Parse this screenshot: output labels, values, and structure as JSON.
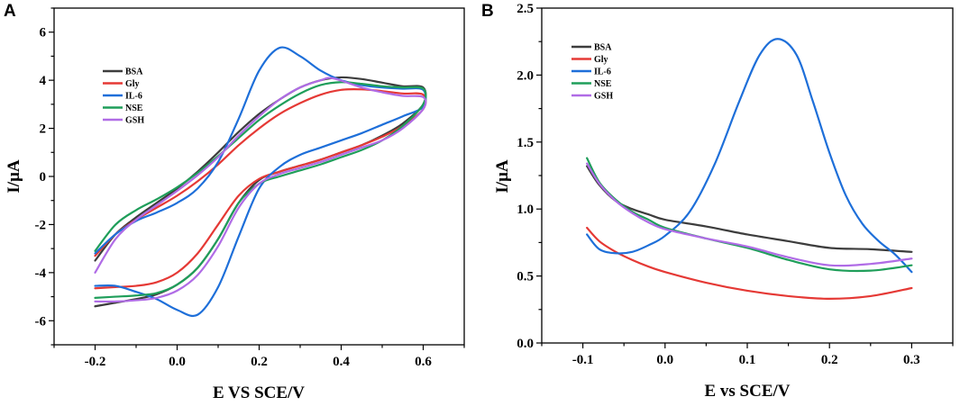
{
  "chart_data": [
    {
      "panel_label": "A",
      "type": "line",
      "title": "",
      "xlabel": "E VS SCE/V",
      "ylabel": "I/μA",
      "xlim": [
        -0.3,
        0.7
      ],
      "ylim": [
        -7,
        7
      ],
      "xticks": [
        -0.2,
        0.0,
        0.2,
        0.4,
        0.6
      ],
      "xtick_labels": [
        "-0.2",
        "0.0",
        "0.2",
        "0.4",
        "0.6"
      ],
      "yticks": [
        -6,
        -4,
        -2,
        0,
        2,
        4,
        6
      ],
      "ytick_labels": [
        "-6",
        "-4",
        "-2",
        "0",
        "2",
        "4",
        "6"
      ],
      "legend_position": "upper-left",
      "series": [
        {
          "name": "BSA",
          "color": "#3d3d3d",
          "points": [
            [
              -0.2,
              -3.5
            ],
            [
              -0.15,
              -2.4
            ],
            [
              -0.1,
              -1.7
            ],
            [
              -0.05,
              -1.1
            ],
            [
              0.0,
              -0.5
            ],
            [
              0.05,
              0.2
            ],
            [
              0.1,
              1.0
            ],
            [
              0.15,
              1.85
            ],
            [
              0.2,
              2.6
            ],
            [
              0.25,
              3.2
            ],
            [
              0.3,
              3.7
            ],
            [
              0.35,
              4.0
            ],
            [
              0.4,
              4.12
            ],
            [
              0.45,
              4.05
            ],
            [
              0.5,
              3.9
            ],
            [
              0.55,
              3.75
            ],
            [
              0.6,
              3.7
            ],
            [
              0.6,
              3.0
            ],
            [
              0.55,
              2.2
            ],
            [
              0.5,
              1.7
            ],
            [
              0.45,
              1.3
            ],
            [
              0.4,
              1.0
            ],
            [
              0.35,
              0.7
            ],
            [
              0.3,
              0.45
            ],
            [
              0.25,
              0.2
            ],
            [
              0.2,
              -0.15
            ],
            [
              0.15,
              -1.1
            ],
            [
              0.1,
              -2.6
            ],
            [
              0.05,
              -3.8
            ],
            [
              0.0,
              -4.5
            ],
            [
              -0.05,
              -4.9
            ],
            [
              -0.1,
              -5.1
            ],
            [
              -0.15,
              -5.25
            ],
            [
              -0.2,
              -5.4
            ]
          ]
        },
        {
          "name": "Gly",
          "color": "#e53935",
          "points": [
            [
              -0.2,
              -3.3
            ],
            [
              -0.15,
              -2.4
            ],
            [
              -0.1,
              -1.8
            ],
            [
              -0.05,
              -1.3
            ],
            [
              0.0,
              -0.8
            ],
            [
              0.05,
              -0.2
            ],
            [
              0.1,
              0.5
            ],
            [
              0.15,
              1.3
            ],
            [
              0.2,
              2.0
            ],
            [
              0.25,
              2.6
            ],
            [
              0.3,
              3.05
            ],
            [
              0.35,
              3.4
            ],
            [
              0.4,
              3.6
            ],
            [
              0.45,
              3.62
            ],
            [
              0.5,
              3.55
            ],
            [
              0.55,
              3.45
            ],
            [
              0.6,
              3.4
            ],
            [
              0.6,
              2.8
            ],
            [
              0.55,
              2.1
            ],
            [
              0.5,
              1.65
            ],
            [
              0.45,
              1.3
            ],
            [
              0.4,
              1.0
            ],
            [
              0.35,
              0.7
            ],
            [
              0.3,
              0.45
            ],
            [
              0.25,
              0.2
            ],
            [
              0.2,
              -0.1
            ],
            [
              0.15,
              -0.8
            ],
            [
              0.1,
              -2.0
            ],
            [
              0.05,
              -3.2
            ],
            [
              0.0,
              -4.0
            ],
            [
              -0.05,
              -4.4
            ],
            [
              -0.1,
              -4.55
            ],
            [
              -0.15,
              -4.6
            ],
            [
              -0.2,
              -4.65
            ]
          ]
        },
        {
          "name": "IL-6",
          "color": "#1e6fd9",
          "points": [
            [
              -0.2,
              -3.2
            ],
            [
              -0.15,
              -2.4
            ],
            [
              -0.1,
              -1.85
            ],
            [
              -0.05,
              -1.5
            ],
            [
              0.0,
              -1.1
            ],
            [
              0.05,
              -0.5
            ],
            [
              0.1,
              0.6
            ],
            [
              0.15,
              2.4
            ],
            [
              0.2,
              4.4
            ],
            [
              0.25,
              5.35
            ],
            [
              0.3,
              5.0
            ],
            [
              0.35,
              4.4
            ],
            [
              0.4,
              4.0
            ],
            [
              0.45,
              3.8
            ],
            [
              0.5,
              3.7
            ],
            [
              0.55,
              3.65
            ],
            [
              0.6,
              3.6
            ],
            [
              0.6,
              2.9
            ],
            [
              0.55,
              2.5
            ],
            [
              0.5,
              2.15
            ],
            [
              0.45,
              1.8
            ],
            [
              0.4,
              1.5
            ],
            [
              0.35,
              1.2
            ],
            [
              0.3,
              0.9
            ],
            [
              0.25,
              0.4
            ],
            [
              0.2,
              -0.5
            ],
            [
              0.15,
              -2.5
            ],
            [
              0.1,
              -4.6
            ],
            [
              0.05,
              -5.75
            ],
            [
              0.0,
              -5.55
            ],
            [
              -0.05,
              -5.1
            ],
            [
              -0.1,
              -4.8
            ],
            [
              -0.15,
              -4.55
            ],
            [
              -0.2,
              -4.55
            ]
          ]
        },
        {
          "name": "NSE",
          "color": "#1f9e5a",
          "points": [
            [
              -0.2,
              -3.1
            ],
            [
              -0.15,
              -2.0
            ],
            [
              -0.1,
              -1.4
            ],
            [
              -0.05,
              -0.95
            ],
            [
              0.0,
              -0.45
            ],
            [
              0.05,
              0.15
            ],
            [
              0.1,
              0.85
            ],
            [
              0.15,
              1.6
            ],
            [
              0.2,
              2.35
            ],
            [
              0.25,
              2.95
            ],
            [
              0.3,
              3.45
            ],
            [
              0.35,
              3.8
            ],
            [
              0.4,
              3.92
            ],
            [
              0.45,
              3.85
            ],
            [
              0.5,
              3.75
            ],
            [
              0.55,
              3.7
            ],
            [
              0.6,
              3.65
            ],
            [
              0.6,
              3.0
            ],
            [
              0.55,
              2.1
            ],
            [
              0.5,
              1.5
            ],
            [
              0.45,
              1.1
            ],
            [
              0.4,
              0.8
            ],
            [
              0.35,
              0.5
            ],
            [
              0.3,
              0.25
            ],
            [
              0.25,
              0.0
            ],
            [
              0.2,
              -0.3
            ],
            [
              0.15,
              -1.1
            ],
            [
              0.1,
              -2.6
            ],
            [
              0.05,
              -3.8
            ],
            [
              0.0,
              -4.5
            ],
            [
              -0.05,
              -4.85
            ],
            [
              -0.1,
              -4.95
            ],
            [
              -0.15,
              -5.0
            ],
            [
              -0.2,
              -5.05
            ]
          ]
        },
        {
          "name": "GSH",
          "color": "#b06ce6",
          "points": [
            [
              -0.2,
              -4.0
            ],
            [
              -0.15,
              -2.6
            ],
            [
              -0.1,
              -1.8
            ],
            [
              -0.05,
              -1.2
            ],
            [
              0.0,
              -0.6
            ],
            [
              0.05,
              0.05
            ],
            [
              0.1,
              0.8
            ],
            [
              0.15,
              1.7
            ],
            [
              0.2,
              2.5
            ],
            [
              0.25,
              3.2
            ],
            [
              0.3,
              3.7
            ],
            [
              0.35,
              4.0
            ],
            [
              0.38,
              4.08
            ],
            [
              0.45,
              3.7
            ],
            [
              0.5,
              3.5
            ],
            [
              0.55,
              3.35
            ],
            [
              0.6,
              3.3
            ],
            [
              0.6,
              2.8
            ],
            [
              0.55,
              2.0
            ],
            [
              0.5,
              1.5
            ],
            [
              0.45,
              1.2
            ],
            [
              0.4,
              0.9
            ],
            [
              0.35,
              0.6
            ],
            [
              0.3,
              0.35
            ],
            [
              0.25,
              0.1
            ],
            [
              0.2,
              -0.3
            ],
            [
              0.15,
              -1.3
            ],
            [
              0.1,
              -2.9
            ],
            [
              0.05,
              -4.1
            ],
            [
              0.0,
              -4.75
            ],
            [
              -0.05,
              -5.05
            ],
            [
              -0.1,
              -5.15
            ],
            [
              -0.15,
              -5.2
            ],
            [
              -0.2,
              -5.2
            ]
          ]
        }
      ]
    },
    {
      "panel_label": "B",
      "type": "line",
      "title": "",
      "xlabel": "E vs SCE/V",
      "ylabel": "I/μA",
      "xlim": [
        -0.15,
        0.35
      ],
      "ylim": [
        0.0,
        2.5
      ],
      "xticks": [
        -0.1,
        0.0,
        0.1,
        0.2,
        0.3
      ],
      "xtick_labels": [
        "-0.1",
        "0.0",
        "0.1",
        "0.2",
        "0.3"
      ],
      "yticks": [
        0.0,
        0.5,
        1.0,
        1.5,
        2.0,
        2.5
      ],
      "ytick_labels": [
        "0.0",
        "0.5",
        "1.0",
        "1.5",
        "2.0",
        "2.5"
      ],
      "legend_position": "upper-left",
      "series": [
        {
          "name": "BSA",
          "color": "#3d3d3d",
          "points": [
            [
              -0.095,
              1.32
            ],
            [
              -0.08,
              1.18
            ],
            [
              -0.06,
              1.06
            ],
            [
              -0.04,
              1.0
            ],
            [
              -0.02,
              0.96
            ],
            [
              0.0,
              0.92
            ],
            [
              0.05,
              0.87
            ],
            [
              0.1,
              0.81
            ],
            [
              0.15,
              0.76
            ],
            [
              0.2,
              0.71
            ],
            [
              0.25,
              0.7
            ],
            [
              0.3,
              0.68
            ]
          ]
        },
        {
          "name": "Gly",
          "color": "#e53935",
          "points": [
            [
              -0.095,
              0.86
            ],
            [
              -0.08,
              0.76
            ],
            [
              -0.06,
              0.68
            ],
            [
              -0.04,
              0.62
            ],
            [
              -0.02,
              0.57
            ],
            [
              0.0,
              0.53
            ],
            [
              0.05,
              0.45
            ],
            [
              0.1,
              0.39
            ],
            [
              0.15,
              0.35
            ],
            [
              0.2,
              0.33
            ],
            [
              0.25,
              0.35
            ],
            [
              0.3,
              0.41
            ]
          ]
        },
        {
          "name": "IL-6",
          "color": "#1e6fd9",
          "points": [
            [
              -0.095,
              0.81
            ],
            [
              -0.08,
              0.7
            ],
            [
              -0.06,
              0.67
            ],
            [
              -0.04,
              0.68
            ],
            [
              -0.02,
              0.73
            ],
            [
              0.0,
              0.8
            ],
            [
              0.03,
              0.98
            ],
            [
              0.06,
              1.33
            ],
            [
              0.09,
              1.8
            ],
            [
              0.115,
              2.15
            ],
            [
              0.137,
              2.27
            ],
            [
              0.16,
              2.15
            ],
            [
              0.18,
              1.8
            ],
            [
              0.2,
              1.42
            ],
            [
              0.22,
              1.1
            ],
            [
              0.24,
              0.89
            ],
            [
              0.26,
              0.76
            ],
            [
              0.28,
              0.66
            ],
            [
              0.3,
              0.53
            ]
          ]
        },
        {
          "name": "NSE",
          "color": "#1f9e5a",
          "points": [
            [
              -0.095,
              1.38
            ],
            [
              -0.08,
              1.2
            ],
            [
              -0.06,
              1.07
            ],
            [
              -0.04,
              0.98
            ],
            [
              -0.02,
              0.92
            ],
            [
              0.0,
              0.86
            ],
            [
              0.05,
              0.78
            ],
            [
              0.1,
              0.71
            ],
            [
              0.15,
              0.62
            ],
            [
              0.2,
              0.55
            ],
            [
              0.25,
              0.54
            ],
            [
              0.3,
              0.58
            ]
          ]
        },
        {
          "name": "GSH",
          "color": "#b06ce6",
          "points": [
            [
              -0.095,
              1.34
            ],
            [
              -0.08,
              1.19
            ],
            [
              -0.06,
              1.06
            ],
            [
              -0.04,
              0.97
            ],
            [
              -0.02,
              0.9
            ],
            [
              0.0,
              0.85
            ],
            [
              0.05,
              0.78
            ],
            [
              0.1,
              0.72
            ],
            [
              0.15,
              0.64
            ],
            [
              0.2,
              0.58
            ],
            [
              0.25,
              0.59
            ],
            [
              0.3,
              0.63
            ]
          ]
        }
      ]
    }
  ]
}
